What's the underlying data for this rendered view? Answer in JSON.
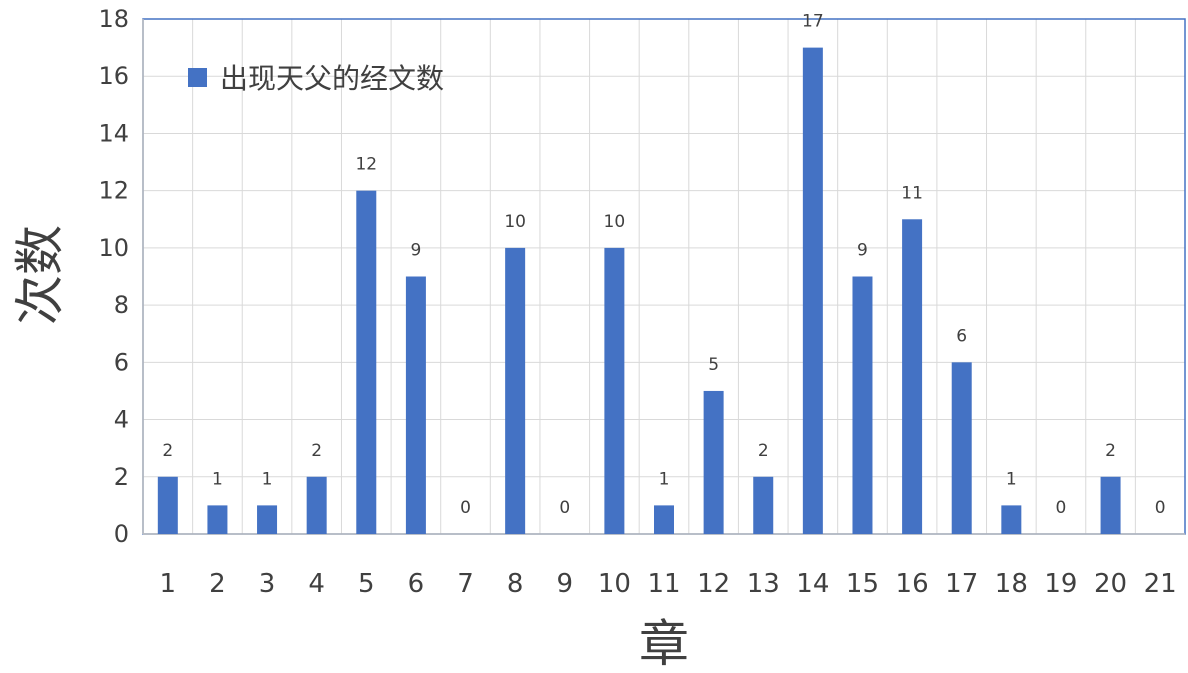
{
  "chart_data": {
    "type": "bar",
    "categories": [
      "1",
      "2",
      "3",
      "4",
      "5",
      "6",
      "7",
      "8",
      "9",
      "10",
      "11",
      "12",
      "13",
      "14",
      "15",
      "16",
      "17",
      "18",
      "19",
      "20",
      "21"
    ],
    "series": [
      {
        "name": "出现天父的经文数",
        "values": [
          2,
          1,
          1,
          2,
          12,
          9,
          0,
          10,
          0,
          10,
          1,
          5,
          2,
          17,
          9,
          11,
          6,
          1,
          0,
          2,
          0
        ],
        "color": "#4472C4"
      }
    ],
    "xlabel": "章",
    "ylabel": "次数",
    "ylim": [
      0,
      18
    ],
    "yticks": [
      0,
      2,
      4,
      6,
      8,
      10,
      12,
      14,
      16,
      18
    ],
    "data_labels": true,
    "grid": true,
    "legend": {
      "position": "top-left"
    },
    "frame_color": "#4472C4"
  }
}
